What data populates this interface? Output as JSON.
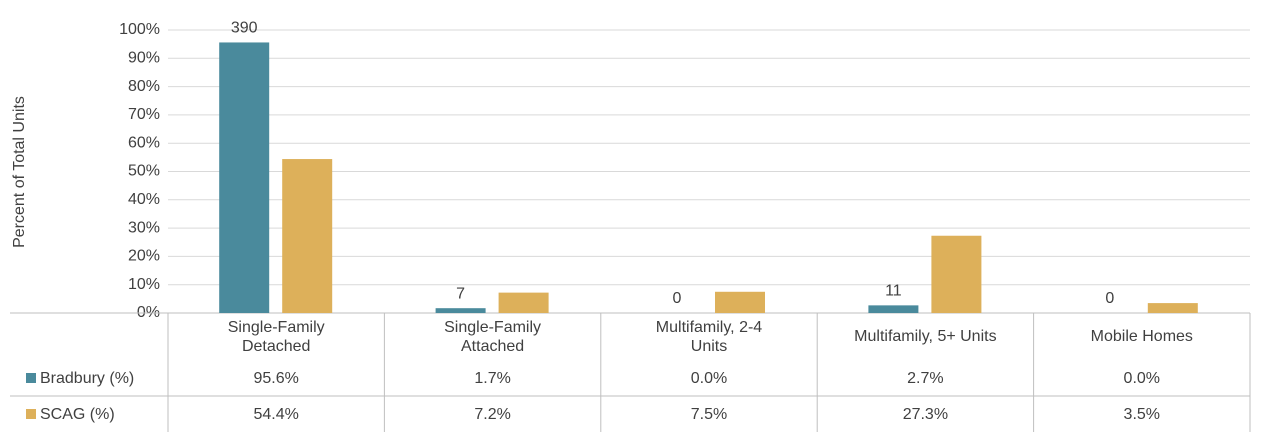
{
  "chart_data": {
    "type": "bar",
    "y_axis_label": "Percent of Total Units",
    "categories": [
      "Single-Family\nDetached",
      "Single-Family\nAttached",
      "Multifamily, 2-4\nUnits",
      "Multifamily, 5+ Units",
      "Mobile Homes"
    ],
    "series": [
      {
        "name": "Bradbury (%)",
        "color": "#4a8a9c",
        "values": [
          95.6,
          1.7,
          0.0,
          2.7,
          0.0
        ],
        "value_labels": [
          "95.6%",
          "1.7%",
          "0.0%",
          "2.7%",
          "0.0%"
        ],
        "unit_counts": [
          390,
          7,
          0,
          11,
          0
        ]
      },
      {
        "name": "SCAG (%)",
        "color": "#ddb05a",
        "values": [
          54.4,
          7.2,
          7.5,
          27.3,
          3.5
        ],
        "value_labels": [
          "54.4%",
          "7.2%",
          "7.5%",
          "27.3%",
          "3.5%"
        ]
      }
    ],
    "ylim": [
      0,
      100
    ],
    "yticks": [
      {
        "value": 0,
        "label": "0%"
      },
      {
        "value": 10,
        "label": "10%"
      },
      {
        "value": 20,
        "label": "20%"
      },
      {
        "value": 30,
        "label": "30%"
      },
      {
        "value": 40,
        "label": "40%"
      },
      {
        "value": 50,
        "label": "50%"
      },
      {
        "value": 60,
        "label": "60%"
      },
      {
        "value": 70,
        "label": "70%"
      },
      {
        "value": 80,
        "label": "80%"
      },
      {
        "value": 90,
        "label": "90%"
      },
      {
        "value": 100,
        "label": "100%"
      }
    ],
    "grid": true
  }
}
